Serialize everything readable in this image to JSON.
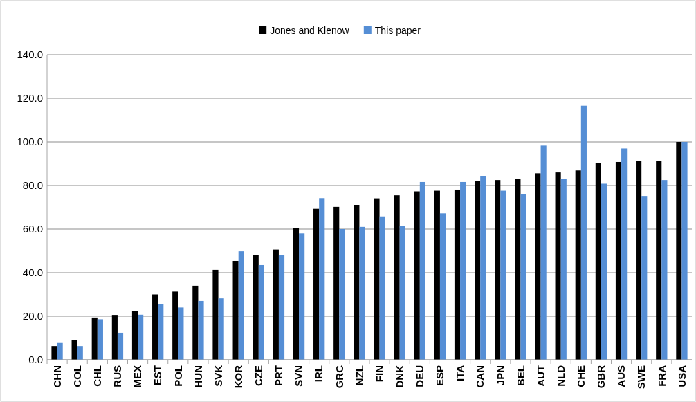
{
  "chart_data": {
    "type": "bar",
    "categories": [
      "CHN",
      "COL",
      "CHL",
      "RUS",
      "MEX",
      "EST",
      "POL",
      "HUN",
      "SVK",
      "KOR",
      "CZE",
      "PRT",
      "SVN",
      "IRL",
      "GRC",
      "NZL",
      "FIN",
      "DNK",
      "DEU",
      "ESP",
      "ITA",
      "CAN",
      "JPN",
      "BEL",
      "AUT",
      "NLD",
      "CHE",
      "GBR",
      "AUS",
      "SWE",
      "FRA",
      "USA"
    ],
    "series": [
      {
        "name": "Jones and Klenow",
        "color": "#000000",
        "values": [
          6.3,
          9.0,
          19.4,
          20.6,
          22.5,
          30.0,
          31.3,
          34.0,
          41.3,
          45.4,
          48.0,
          50.6,
          60.6,
          69.3,
          70.2,
          71.1,
          74.1,
          75.5,
          77.3,
          77.6,
          78.1,
          82.1,
          82.5,
          83.0,
          85.6,
          86.0,
          86.9,
          90.4,
          90.8,
          91.2,
          91.2,
          100.0
        ]
      },
      {
        "name": "This paper",
        "color": "#558ed5",
        "values": [
          7.7,
          6.3,
          18.6,
          12.4,
          20.7,
          25.6,
          24.0,
          27.0,
          28.2,
          49.8,
          43.5,
          48.0,
          58.0,
          74.2,
          60.0,
          61.0,
          65.8,
          61.4,
          81.6,
          67.2,
          81.6,
          84.3,
          77.6,
          75.9,
          98.3,
          83.0,
          116.6,
          80.8,
          97.0,
          75.2,
          82.5,
          100.0
        ]
      }
    ],
    "ylim": [
      0,
      140
    ],
    "yticks": [
      {
        "value": 0,
        "label": "0.0"
      },
      {
        "value": 20,
        "label": "20.0"
      },
      {
        "value": 40,
        "label": "40.0"
      },
      {
        "value": 60,
        "label": "60.0"
      },
      {
        "value": 80,
        "label": "80.0"
      },
      {
        "value": 100,
        "label": "100.0"
      },
      {
        "value": 120,
        "label": "120.0"
      },
      {
        "value": 140,
        "label": "140.0"
      }
    ],
    "grid": "y",
    "legend": "top"
  }
}
